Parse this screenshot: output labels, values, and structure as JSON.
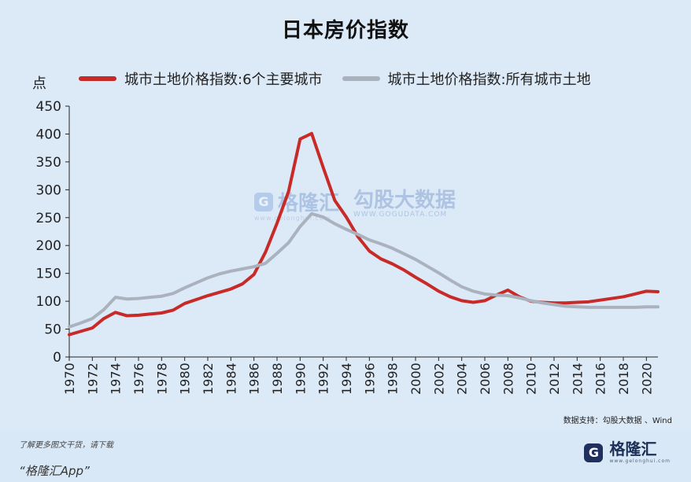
{
  "page": {
    "footer_note": "了解更多图文干货，请下载",
    "footer_app": "“格隆汇App”",
    "brand_name": "格隆汇",
    "brand_url": "www.gelonghui.com"
  },
  "watermark": {
    "left_text": "格隆汇",
    "left_sub": "www.gelonghui.com",
    "right_text": "勾股大数据",
    "right_sub": "WWW.GOGUDATA.COM"
  },
  "chart_data": {
    "type": "line",
    "title": "日本房价指数",
    "ylabel": "点",
    "xlabel": "",
    "ylim": [
      0,
      450
    ],
    "xlim": [
      1970,
      2021
    ],
    "grid": false,
    "legend_position": "top",
    "source": "数据支持：勾股大数据 、Wind",
    "y_ticks": [
      0,
      50,
      100,
      150,
      200,
      250,
      300,
      350,
      400,
      450
    ],
    "x_ticks": [
      1970,
      1972,
      1974,
      1976,
      1978,
      1980,
      1982,
      1984,
      1986,
      1988,
      1990,
      1992,
      1994,
      1996,
      1998,
      2000,
      2002,
      2004,
      2006,
      2008,
      2010,
      2012,
      2014,
      2016,
      2018,
      2020
    ],
    "x": [
      1970,
      1971,
      1972,
      1973,
      1974,
      1975,
      1976,
      1977,
      1978,
      1979,
      1980,
      1981,
      1982,
      1983,
      1984,
      1985,
      1986,
      1987,
      1988,
      1989,
      1990,
      1991,
      1992,
      1993,
      1994,
      1995,
      1996,
      1997,
      1998,
      1999,
      2000,
      2001,
      2002,
      2003,
      2004,
      2005,
      2006,
      2007,
      2008,
      2009,
      2010,
      2011,
      2012,
      2013,
      2014,
      2015,
      2016,
      2017,
      2018,
      2019,
      2020,
      2021
    ],
    "series": [
      {
        "name": "城市土地价格指数:6个主要城市",
        "color": "#c82a28",
        "values": [
          40,
          46,
          52,
          69,
          80,
          74,
          75,
          77,
          79,
          84,
          96,
          103,
          110,
          116,
          122,
          131,
          148,
          188,
          240,
          297,
          391,
          401,
          340,
          281,
          251,
          216,
          190,
          176,
          167,
          156,
          143,
          131,
          118,
          108,
          101,
          98,
          101,
          111,
          120,
          108,
          100,
          98,
          97,
          97,
          98,
          99,
          102,
          105,
          108,
          113,
          118,
          117
        ]
      },
      {
        "name": "城市土地价格指数:所有城市土地",
        "color": "#aab3bd",
        "values": [
          54,
          61,
          69,
          85,
          107,
          104,
          105,
          107,
          109,
          114,
          124,
          133,
          142,
          149,
          154,
          158,
          162,
          168,
          186,
          205,
          234,
          257,
          251,
          239,
          229,
          220,
          210,
          203,
          195,
          185,
          175,
          163,
          151,
          138,
          126,
          118,
          113,
          111,
          110,
          106,
          101,
          97,
          94,
          91,
          90,
          89,
          89,
          89,
          89,
          89,
          90,
          90
        ]
      }
    ]
  }
}
